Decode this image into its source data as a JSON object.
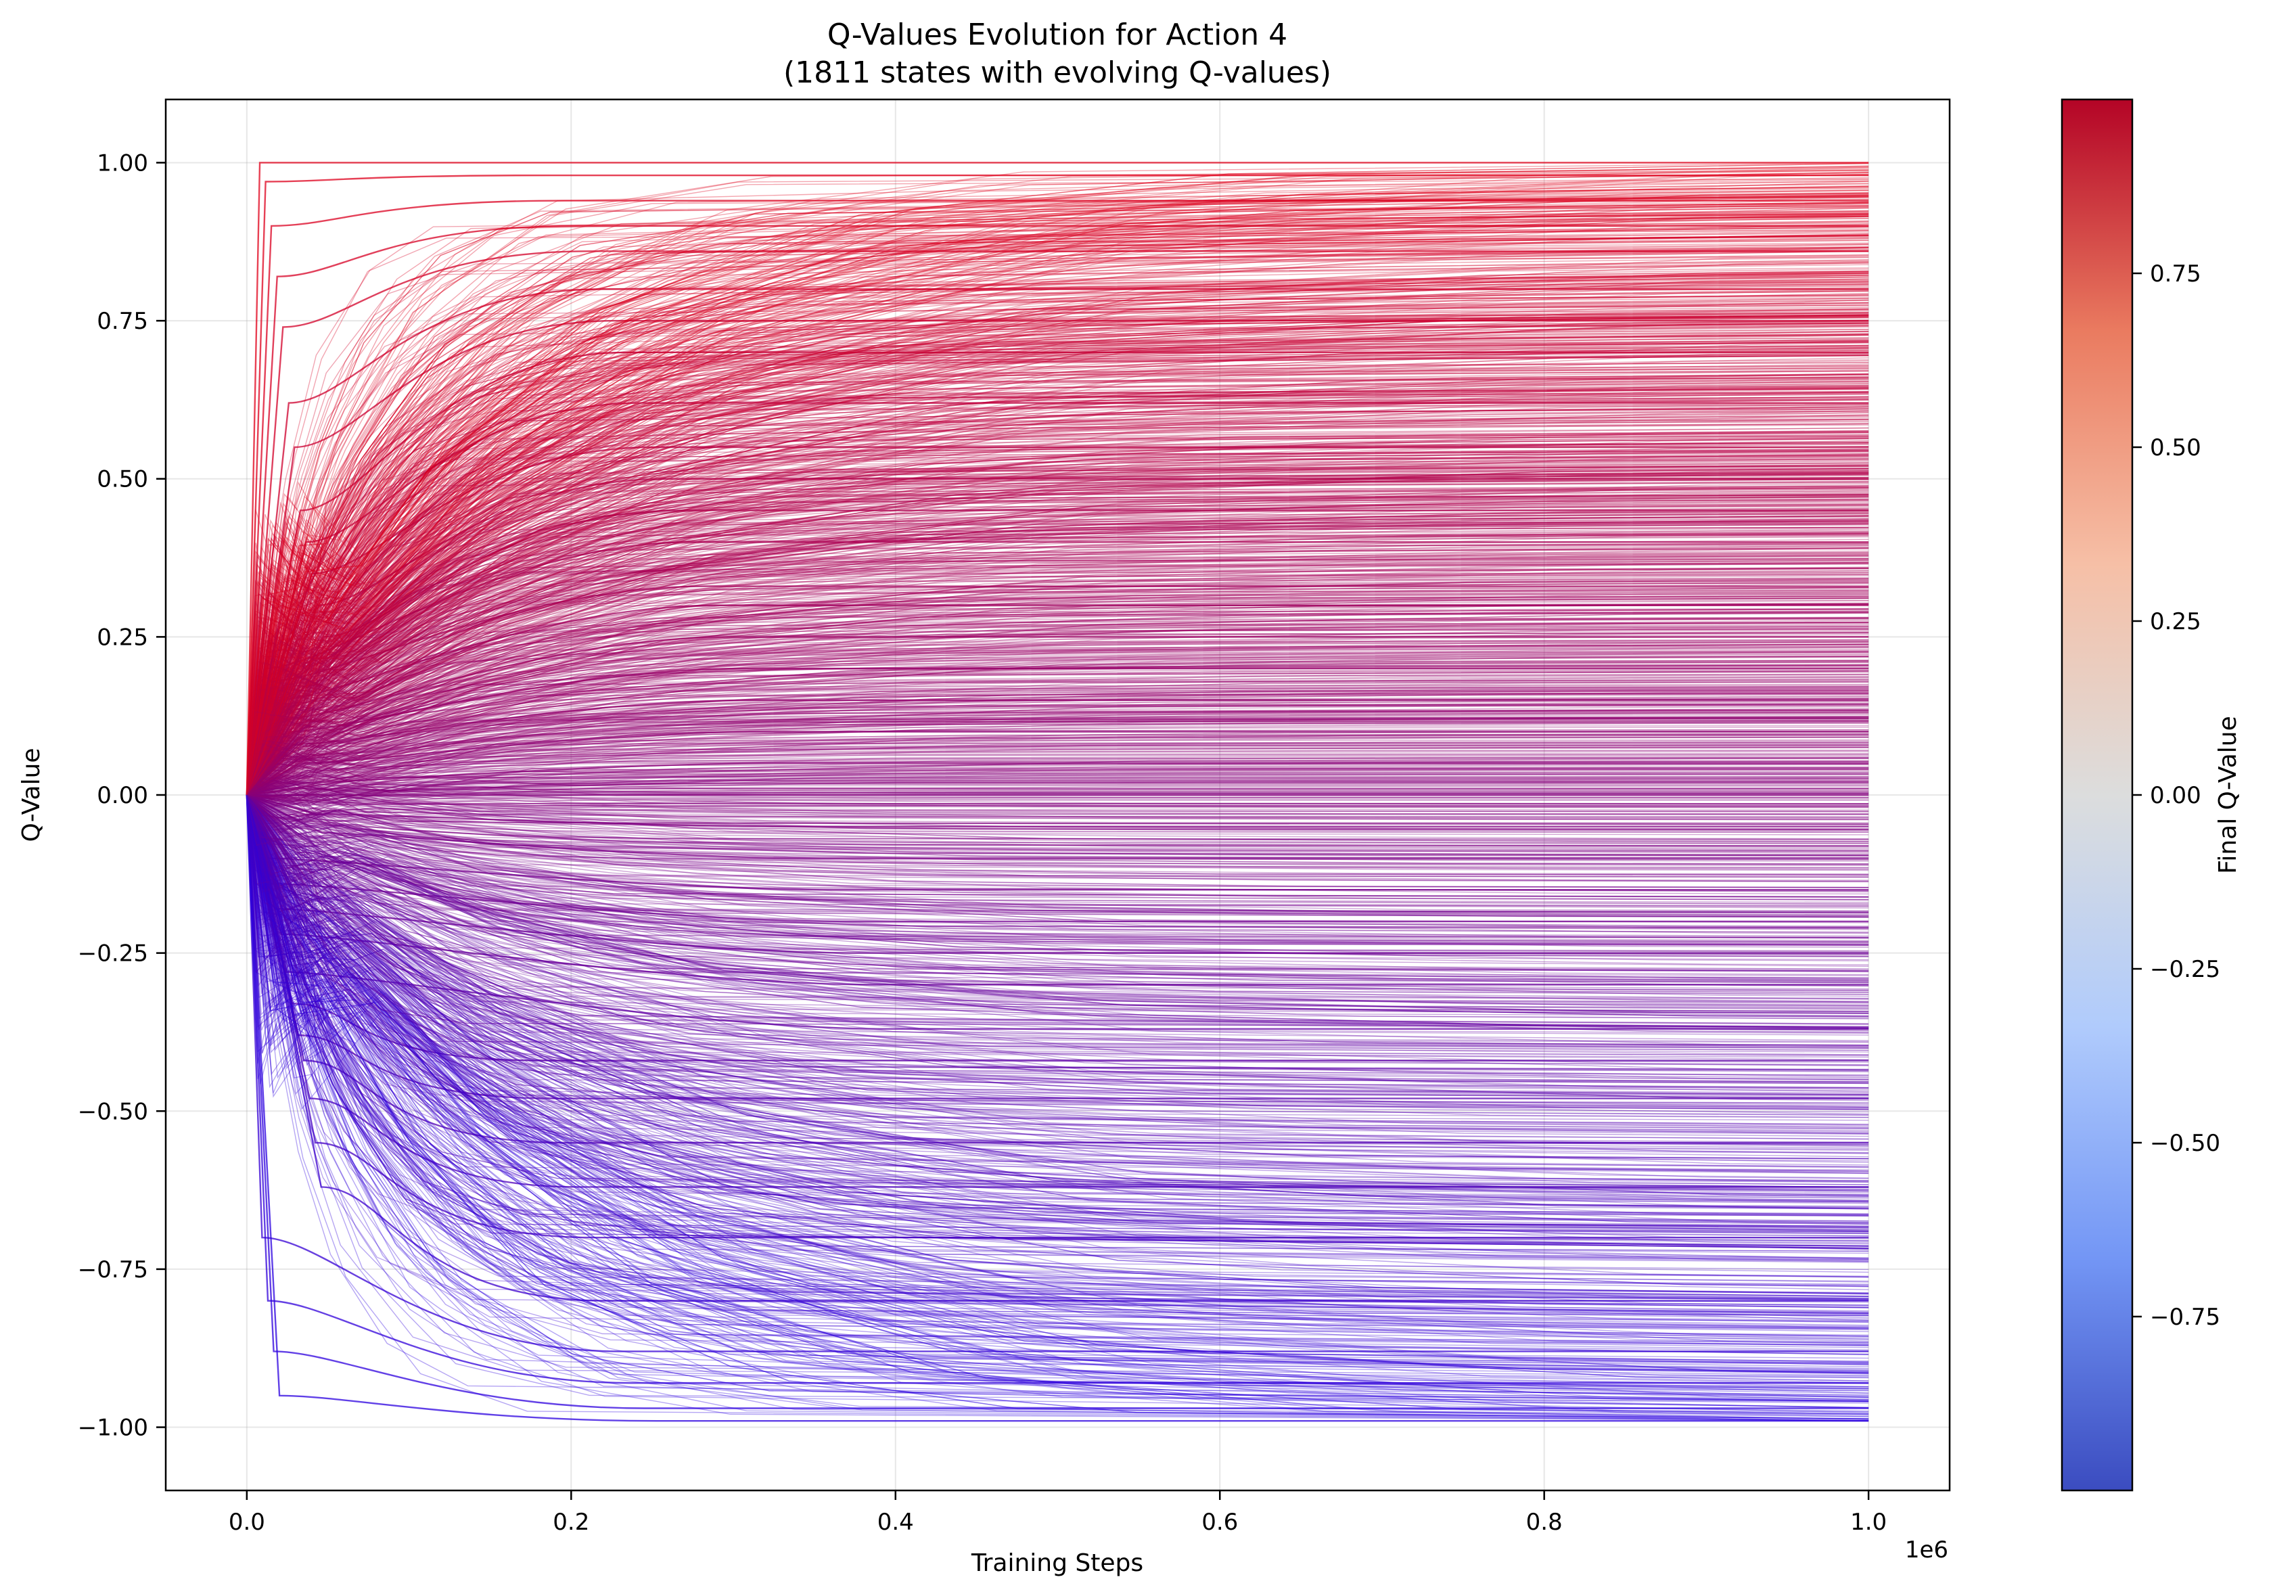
{
  "chart_data": {
    "type": "line",
    "title": "Q-Values Evolution for Action 4",
    "subtitle": "(1811 states with evolving Q-values)",
    "xlabel": "Training Steps",
    "ylabel": "Q-Value",
    "x_offset_label": "1e6",
    "xlim": [
      -50000,
      1050000
    ],
    "ylim": [
      -1.1,
      1.1
    ],
    "x_ticks": [
      0,
      200000,
      400000,
      600000,
      800000,
      1000000
    ],
    "x_tick_labels": [
      "0.0",
      "0.2",
      "0.4",
      "0.6",
      "0.8",
      "1.0"
    ],
    "y_ticks": [
      1.0,
      0.75,
      0.5,
      0.25,
      0.0,
      -0.25,
      -0.5,
      -0.75,
      -1.0
    ],
    "y_tick_labels": [
      "1.00",
      "0.75",
      "0.50",
      "0.25",
      "0.00",
      "−0.25",
      "−0.50",
      "−0.75",
      "−1.00"
    ],
    "grid": true,
    "colormap": "coolwarm",
    "colorbar": {
      "label": "Final Q-Value",
      "range": [
        -1.0,
        1.0
      ],
      "ticks": [
        0.75,
        0.5,
        0.25,
        0.0,
        -0.25,
        -0.5,
        -0.75
      ],
      "tick_labels": [
        "0.75",
        "0.50",
        "0.25",
        "0.00",
        "−0.25",
        "−0.50",
        "−0.75"
      ],
      "colors": [
        "#3b4cc0",
        "#7396f5",
        "#b0cbfc",
        "#dcdddd",
        "#f6bfa6",
        "#ea7b60",
        "#b40426"
      ]
    },
    "state_count": 1811,
    "line_color_positive": "#e0001a",
    "line_color_negative": "#2a00e0",
    "series": [
      {
        "values": [
          0.0,
          1.0,
          1.0
        ]
      },
      {
        "values": [
          0.0,
          0.97,
          0.98
        ]
      },
      {
        "values": [
          0.0,
          0.9,
          0.94
        ]
      },
      {
        "values": [
          0.0,
          0.82,
          0.9
        ]
      },
      {
        "values": [
          0.0,
          0.74,
          0.86
        ]
      },
      {
        "values": [
          0.0,
          0.62,
          0.8
        ]
      },
      {
        "values": [
          0.0,
          0.55,
          0.75
        ]
      },
      {
        "values": [
          0.0,
          0.45,
          0.7
        ]
      },
      {
        "values": [
          0.0,
          0.4,
          0.62
        ]
      },
      {
        "values": [
          0.0,
          0.35,
          0.55
        ]
      },
      {
        "values": [
          0.0,
          0.3,
          0.5
        ]
      },
      {
        "values": [
          0.0,
          0.25,
          0.45
        ]
      },
      {
        "values": [
          0.0,
          0.2,
          0.4
        ]
      },
      {
        "values": [
          0.0,
          0.18,
          0.33
        ]
      },
      {
        "values": [
          0.0,
          0.15,
          0.3
        ]
      },
      {
        "values": [
          0.0,
          0.12,
          0.25
        ]
      },
      {
        "values": [
          0.0,
          0.1,
          0.2
        ]
      },
      {
        "values": [
          0.0,
          0.08,
          0.15
        ]
      },
      {
        "values": [
          0.0,
          0.05,
          0.1
        ]
      },
      {
        "values": [
          0.0,
          0.02,
          0.05
        ]
      },
      {
        "values": [
          0.0,
          0.0,
          0.0
        ]
      },
      {
        "values": [
          0.0,
          -0.03,
          -0.05
        ]
      },
      {
        "values": [
          0.0,
          -0.06,
          -0.1
        ]
      },
      {
        "values": [
          0.0,
          -0.1,
          -0.15
        ]
      },
      {
        "values": [
          0.0,
          -0.14,
          -0.2
        ]
      },
      {
        "values": [
          0.0,
          -0.18,
          -0.25
        ]
      },
      {
        "values": [
          0.0,
          -0.22,
          -0.3
        ]
      },
      {
        "values": [
          0.0,
          -0.28,
          -0.37
        ]
      },
      {
        "values": [
          0.0,
          -0.33,
          -0.42
        ]
      },
      {
        "values": [
          0.0,
          -0.38,
          -0.48
        ]
      },
      {
        "values": [
          0.0,
          -0.42,
          -0.55
        ]
      },
      {
        "values": [
          0.0,
          -0.48,
          -0.62
        ]
      },
      {
        "values": [
          0.0,
          -0.55,
          -0.7
        ]
      },
      {
        "values": [
          0.0,
          -0.62,
          -0.8
        ]
      },
      {
        "values": [
          0.0,
          -0.7,
          -0.88
        ]
      },
      {
        "values": [
          0.0,
          -0.8,
          -0.93
        ]
      },
      {
        "values": [
          0.0,
          -0.88,
          -0.97
        ]
      },
      {
        "values": [
          0.0,
          -0.95,
          -0.99
        ]
      }
    ]
  }
}
